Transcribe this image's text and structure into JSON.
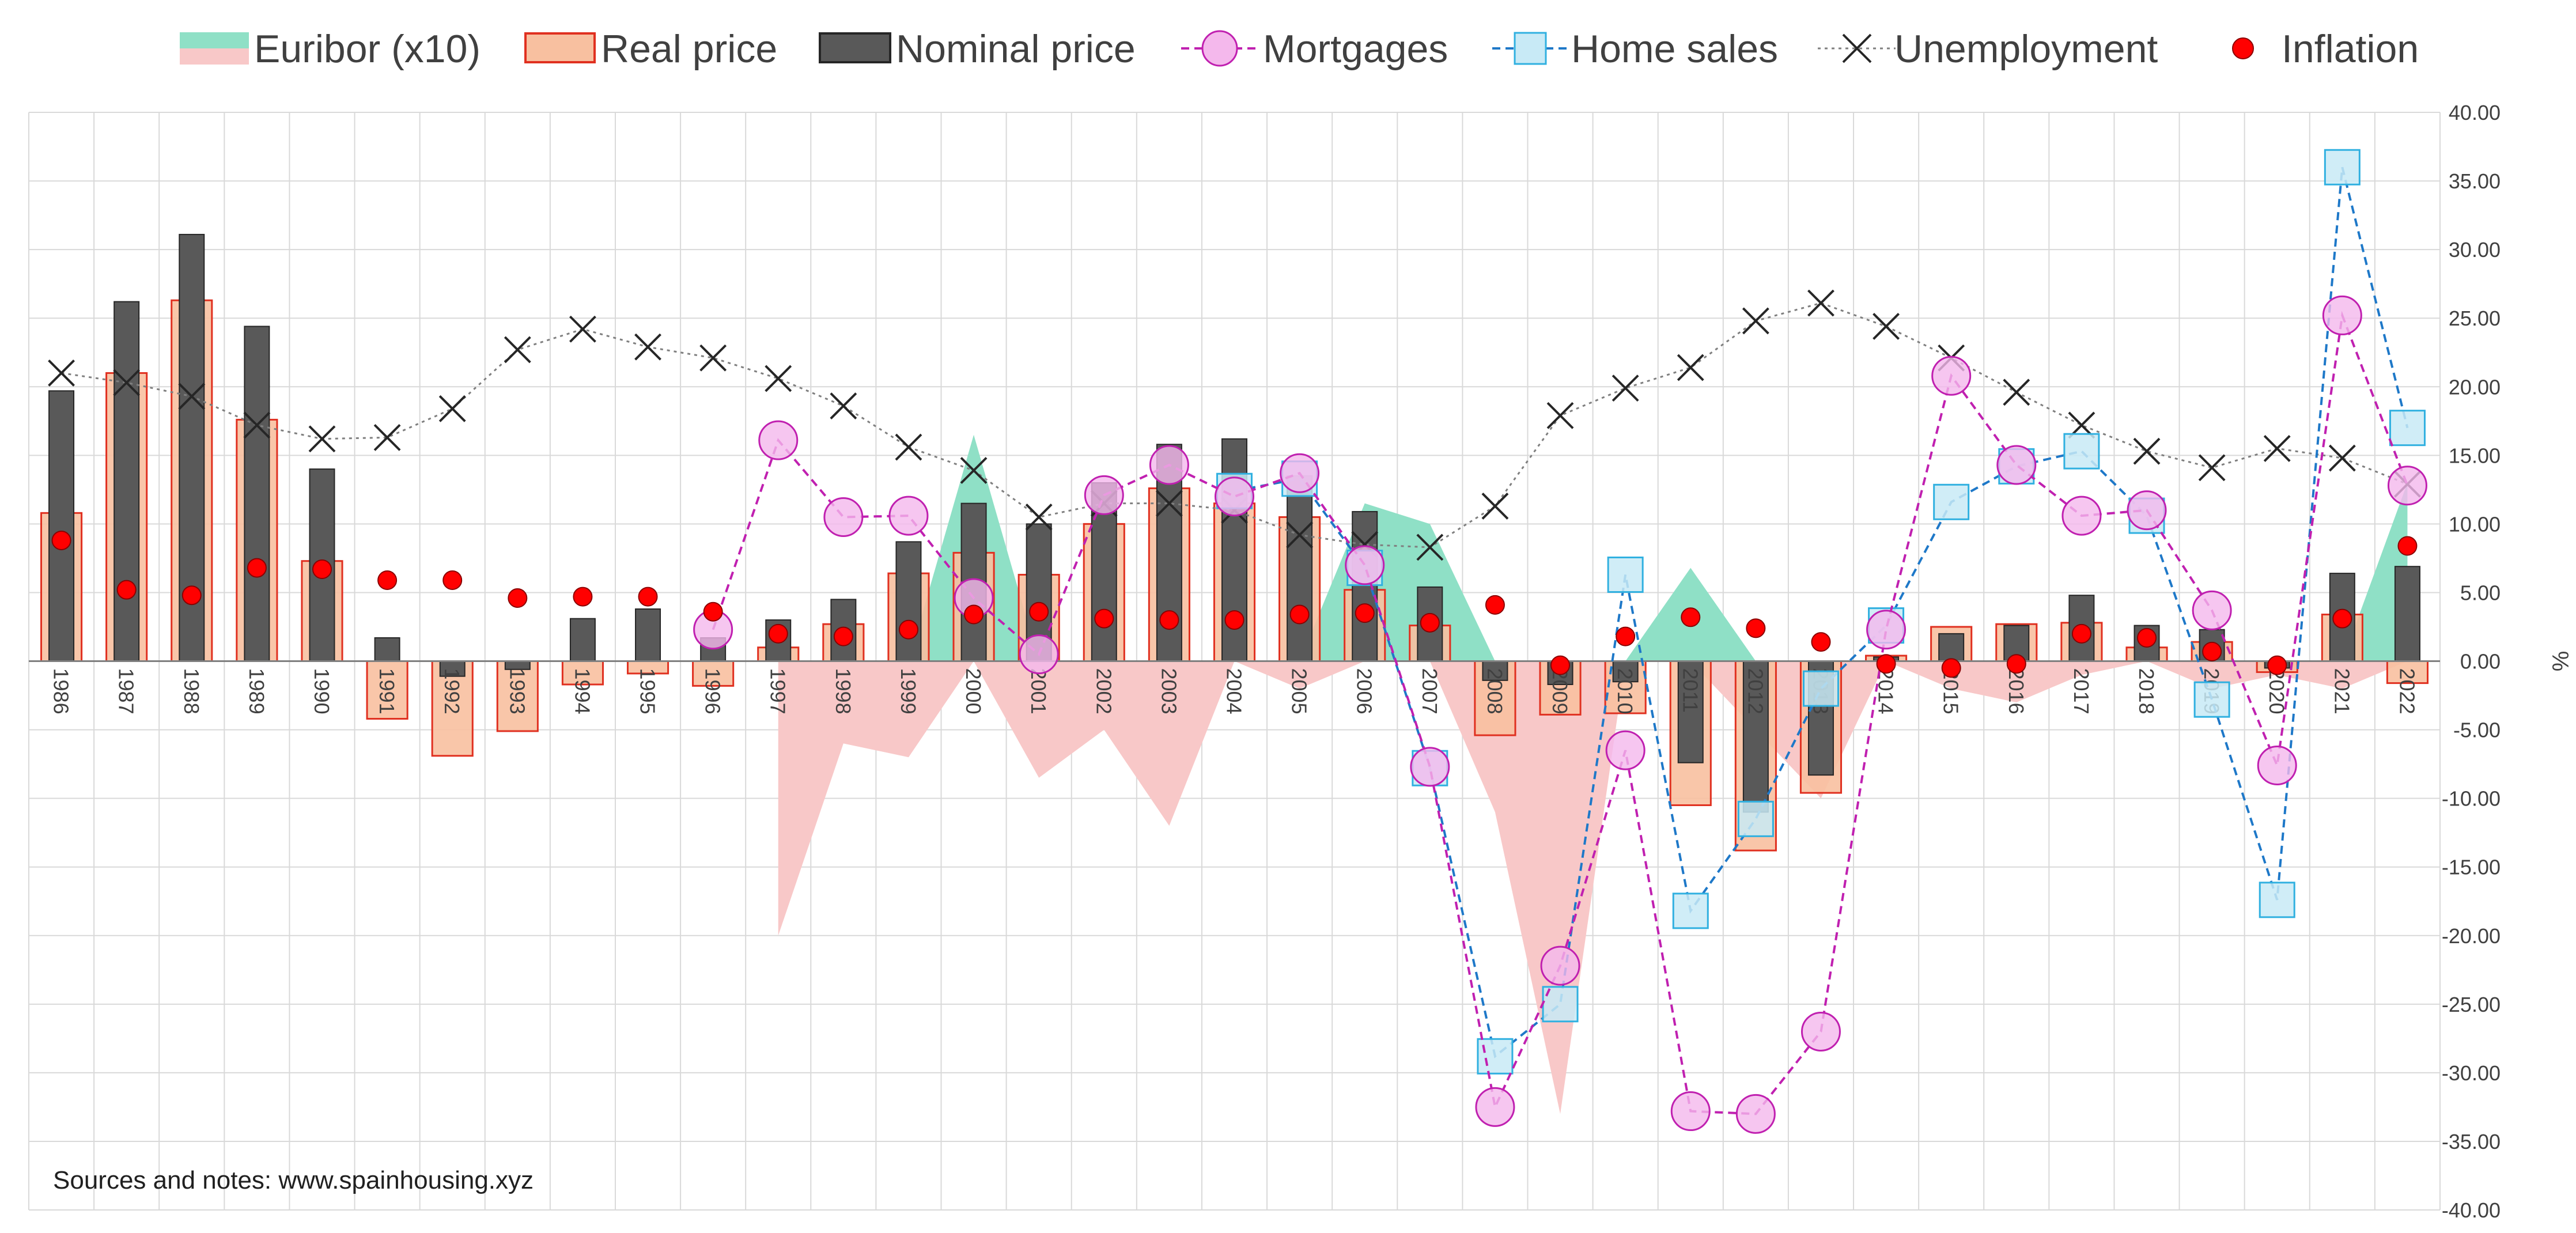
{
  "chart_data": {
    "type": "bar",
    "x": [
      "1986",
      "1987",
      "1988",
      "1989",
      "1990",
      "1991",
      "1992",
      "1993",
      "1994",
      "1995",
      "1996",
      "1997",
      "1998",
      "1999",
      "2000",
      "2001",
      "2002",
      "2003",
      "2004",
      "2005",
      "2006",
      "2007",
      "2008",
      "2009",
      "2010",
      "2011",
      "2012",
      "2013",
      "2014",
      "2015",
      "2016",
      "2017",
      "2018",
      "2019",
      "2020",
      "2021",
      "2022"
    ],
    "ylabel": "%",
    "ylim": [
      -40,
      40
    ],
    "ytick_step": 5,
    "grid": true,
    "legend_placement": "top",
    "note": "Sources and notes: www.spainhousing.xyz",
    "series": [
      {
        "name": "Euribor (x10)",
        "kind": "area",
        "color_positive": "#8FE0C6",
        "color_negative": "#F8C8C8",
        "values": [
          null,
          null,
          null,
          null,
          null,
          null,
          null,
          null,
          null,
          null,
          null,
          -20,
          -6,
          -7,
          16.5,
          -8.5,
          -5,
          -12,
          0,
          -2,
          11.5,
          10,
          -11,
          -33,
          0,
          6.8,
          -5,
          -10,
          0,
          -2,
          -3,
          -1,
          0,
          -2,
          -1,
          -2,
          13
        ]
      },
      {
        "name": "Real price",
        "kind": "bar",
        "fill": "#F8C0A0",
        "stroke": "#E03020",
        "values": [
          10.8,
          21,
          26.3,
          17.6,
          7.3,
          -4.2,
          -6.9,
          -5.1,
          -1.7,
          -0.9,
          -1.8,
          1,
          2.7,
          6.4,
          7.9,
          6.3,
          10,
          12.6,
          11.5,
          10.5,
          5.2,
          2.6,
          -5.4,
          -3.9,
          -3.8,
          -10.5,
          -13.8,
          -9.6,
          0.4,
          2.5,
          2.7,
          2.8,
          1,
          1.4,
          -0.8,
          3.4,
          -1.6
        ]
      },
      {
        "name": "Nominal price",
        "kind": "bar",
        "fill": "#595959",
        "stroke": "#262626",
        "values": [
          19.7,
          26.2,
          31.1,
          24.4,
          14,
          1.7,
          -1.1,
          -0.6,
          3.1,
          3.8,
          1.7,
          3,
          4.5,
          8.7,
          11.5,
          10,
          13,
          15.8,
          16.2,
          13.5,
          10.9,
          5.4,
          -1.4,
          -1.7,
          -1.5,
          -7.4,
          -11,
          -8.3,
          0.3,
          2,
          2.6,
          4.8,
          2.6,
          2.3,
          -0.5,
          6.4,
          6.9
        ]
      },
      {
        "name": "Mortgages",
        "kind": "line",
        "color": "#C020B0",
        "marker_fill": "#F4B8EC",
        "values": [
          null,
          null,
          null,
          null,
          null,
          null,
          null,
          null,
          null,
          null,
          2.3,
          16.1,
          10.5,
          10.6,
          4.6,
          0.5,
          12.1,
          14.3,
          12,
          13.7,
          7,
          -7.7,
          -32.5,
          -22.2,
          -6.5,
          -32.8,
          -33,
          -27,
          2.3,
          20.8,
          14.3,
          10.6,
          11,
          3.7,
          -7.6,
          25.2,
          12.8
        ]
      },
      {
        "name": "Home sales",
        "kind": "line",
        "color": "#1E78C8",
        "marker_fill": "#C8EAF6",
        "marker_stroke": "#30B0E0",
        "values": [
          null,
          null,
          null,
          null,
          null,
          null,
          null,
          null,
          null,
          null,
          null,
          null,
          null,
          null,
          null,
          null,
          null,
          null,
          12.4,
          13.3,
          6.8,
          -7.8,
          -28.8,
          -25,
          6.3,
          -18.2,
          -11.5,
          -2,
          2.6,
          11.6,
          14.2,
          15.3,
          10.6,
          -2.8,
          -17.4,
          36,
          17
        ]
      },
      {
        "name": "Unemployment",
        "kind": "line",
        "color": "#606060",
        "marker": "x",
        "values": [
          21,
          20.3,
          19.3,
          17.2,
          16.2,
          16.3,
          18.4,
          22.7,
          24.2,
          22.9,
          22.1,
          20.6,
          18.6,
          15.6,
          13.9,
          10.5,
          11.5,
          11.5,
          11,
          9.2,
          8.5,
          8.3,
          11.3,
          17.9,
          19.9,
          21.4,
          24.8,
          26.1,
          24.4,
          22.1,
          19.6,
          17.2,
          15.3,
          14.1,
          15.5,
          14.8,
          12.9
        ]
      },
      {
        "name": "Inflation",
        "kind": "scatter",
        "color": "#FF0000",
        "values": [
          8.8,
          5.2,
          4.8,
          6.8,
          6.7,
          5.9,
          5.9,
          4.6,
          4.7,
          4.7,
          3.6,
          2,
          1.8,
          2.3,
          3.4,
          3.6,
          3.1,
          3,
          3,
          3.4,
          3.5,
          2.8,
          4.1,
          -0.3,
          1.8,
          3.2,
          2.4,
          1.4,
          -0.2,
          -0.5,
          -0.2,
          2,
          1.7,
          0.7,
          -0.3,
          3.1,
          8.4
        ]
      }
    ]
  }
}
